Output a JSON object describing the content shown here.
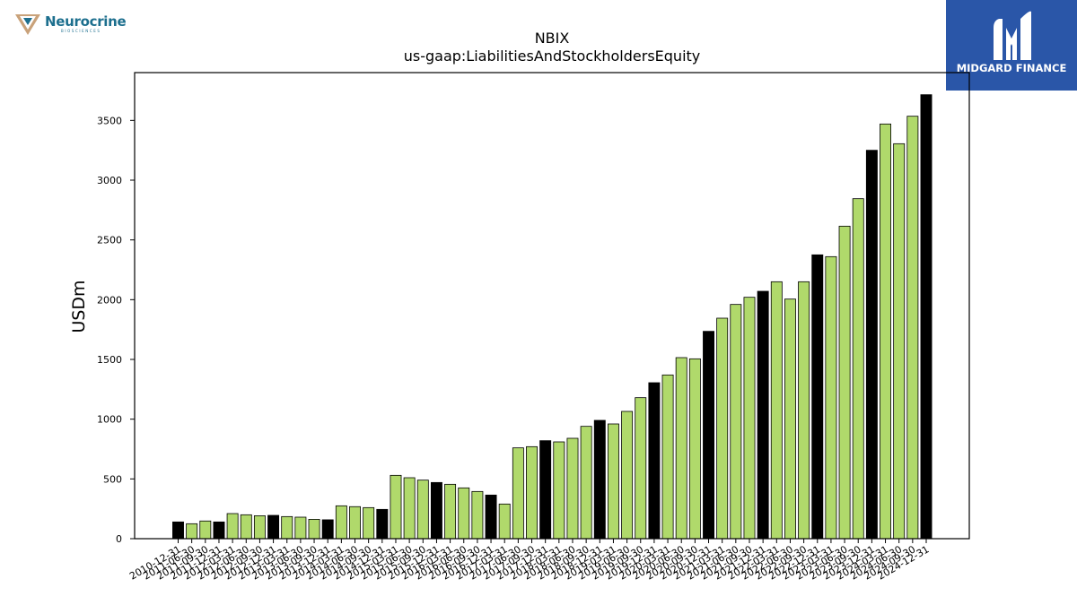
{
  "logos": {
    "company": {
      "wordmark": "Neurocrine",
      "tagline": "BIOSCIENCES",
      "accent": "#1d6f8e",
      "icon": "triangle-v-icon"
    },
    "brand": {
      "name": "MIDGARD FINANCE",
      "background": "#2a56a8",
      "icon": "midgard-m-icon"
    }
  },
  "chart_data": {
    "type": "bar",
    "title": "NBIX",
    "subtitle": "us-gaap:LiabilitiesAndStockholdersEquity",
    "xlabel": "",
    "ylabel": "USDm",
    "ylim": [
      0,
      3900
    ],
    "yticks": [
      0,
      500,
      1000,
      1500,
      2000,
      2500,
      3000,
      3500
    ],
    "grid": false,
    "colors": {
      "year_end": "#000000",
      "quarter": "#b0d96b",
      "edge": "#000000"
    },
    "categories": [
      "2010-12-31",
      "2011-06-30",
      "2011-09-30",
      "2011-12-31",
      "2012-03-31",
      "2012-06-30",
      "2012-09-30",
      "2012-12-31",
      "2013-03-31",
      "2013-06-30",
      "2013-09-30",
      "2013-12-31",
      "2014-03-31",
      "2014-06-30",
      "2014-09-30",
      "2014-12-31",
      "2015-03-31",
      "2015-06-30",
      "2015-09-30",
      "2015-12-31",
      "2016-03-31",
      "2016-06-30",
      "2016-09-30",
      "2016-12-31",
      "2017-03-31",
      "2017-06-30",
      "2017-09-30",
      "2017-12-31",
      "2018-03-31",
      "2018-06-30",
      "2018-09-30",
      "2018-12-31",
      "2019-03-31",
      "2019-06-30",
      "2019-09-30",
      "2019-12-31",
      "2020-03-31",
      "2020-06-30",
      "2020-09-30",
      "2020-12-31",
      "2021-03-31",
      "2021-06-30",
      "2021-09-30",
      "2021-12-31",
      "2022-03-31",
      "2022-06-30",
      "2022-09-30",
      "2022-12-31",
      "2023-03-31",
      "2023-06-30",
      "2023-09-30",
      "2023-12-31",
      "2024-03-31",
      "2024-06-30",
      "2024-09-30",
      "2024-12-31"
    ],
    "values": [
      140,
      125,
      148,
      140,
      210,
      200,
      192,
      195,
      185,
      180,
      162,
      158,
      275,
      268,
      260,
      245,
      530,
      510,
      490,
      470,
      455,
      425,
      395,
      365,
      290,
      760,
      770,
      820,
      810,
      840,
      940,
      990,
      960,
      1065,
      1180,
      1305,
      1370,
      1515,
      1505,
      1735,
      1845,
      1960,
      2020,
      2070,
      2150,
      2005,
      2150,
      2375,
      2360,
      2615,
      2845,
      3250,
      3470,
      3305,
      3535,
      3715
    ],
    "year_end_flags": [
      true,
      false,
      false,
      true,
      false,
      false,
      false,
      true,
      false,
      false,
      false,
      true,
      false,
      false,
      false,
      true,
      false,
      false,
      false,
      true,
      false,
      false,
      false,
      true,
      false,
      false,
      false,
      true,
      false,
      false,
      false,
      true,
      false,
      false,
      false,
      true,
      false,
      false,
      false,
      true,
      false,
      false,
      false,
      true,
      false,
      false,
      false,
      true,
      false,
      false,
      false,
      true,
      false,
      false,
      false,
      true
    ]
  }
}
